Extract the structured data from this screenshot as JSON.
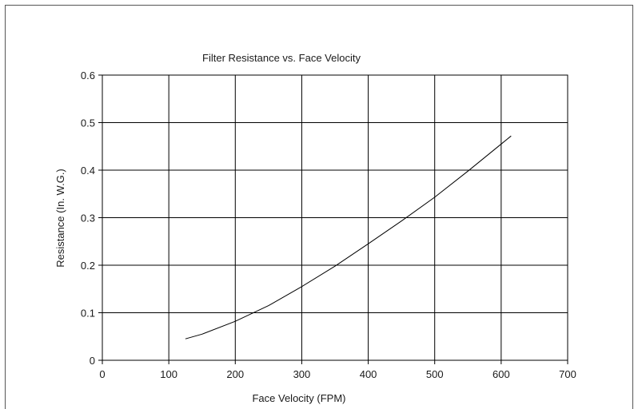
{
  "chart_data": {
    "type": "line",
    "title": "Filter Resistance vs. Face Velocity",
    "xlabel": "Face Velocity (FPM)",
    "ylabel": "Resistance (In. W.G.)",
    "xlim": [
      0,
      700
    ],
    "ylim": [
      0,
      0.6
    ],
    "x_ticks": [
      "0",
      "100",
      "200",
      "300",
      "400",
      "500",
      "600",
      "700"
    ],
    "y_ticks": [
      "0",
      "0.1",
      "0.2",
      "0.3",
      "0.4",
      "0.5",
      "0.6"
    ],
    "grid": true,
    "legend": "none",
    "series": [
      {
        "color": "#000000",
        "x": [
          125,
          150,
          200,
          250,
          300,
          350,
          400,
          450,
          500,
          550,
          600,
          615
        ],
        "y": [
          0.045,
          0.055,
          0.082,
          0.115,
          0.155,
          0.198,
          0.245,
          0.293,
          0.343,
          0.398,
          0.455,
          0.472
        ]
      }
    ]
  }
}
